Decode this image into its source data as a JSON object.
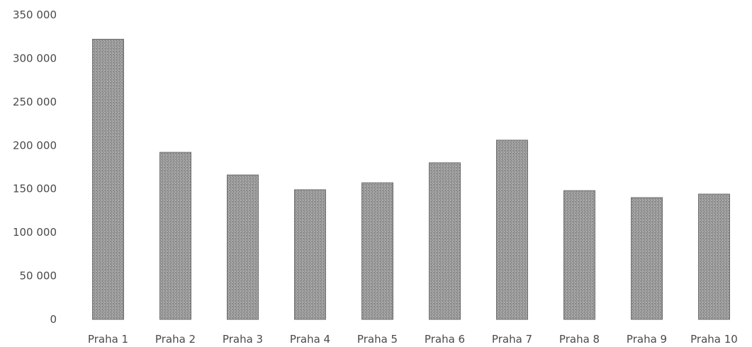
{
  "chart_data": {
    "type": "bar",
    "title": "",
    "xlabel": "",
    "ylabel": "",
    "ylim": [
      0,
      350000
    ],
    "y_ticks": [
      0,
      50000,
      100000,
      150000,
      200000,
      250000,
      300000,
      350000
    ],
    "y_tick_labels": [
      "0",
      "50 000",
      "100 000",
      "150 000",
      "200 000",
      "250 000",
      "300 000",
      "350 000"
    ],
    "categories": [
      "Praha 1",
      "Praha 2",
      "Praha 3",
      "Praha 4",
      "Praha 5",
      "Praha 6",
      "Praha 7",
      "Praha 8",
      "Praha 9",
      "Praha 10"
    ],
    "values": [
      322000,
      192000,
      166000,
      149000,
      157000,
      180000,
      206000,
      148000,
      140000,
      144000
    ],
    "grid": false,
    "bar_color": "#9a9a9a"
  }
}
